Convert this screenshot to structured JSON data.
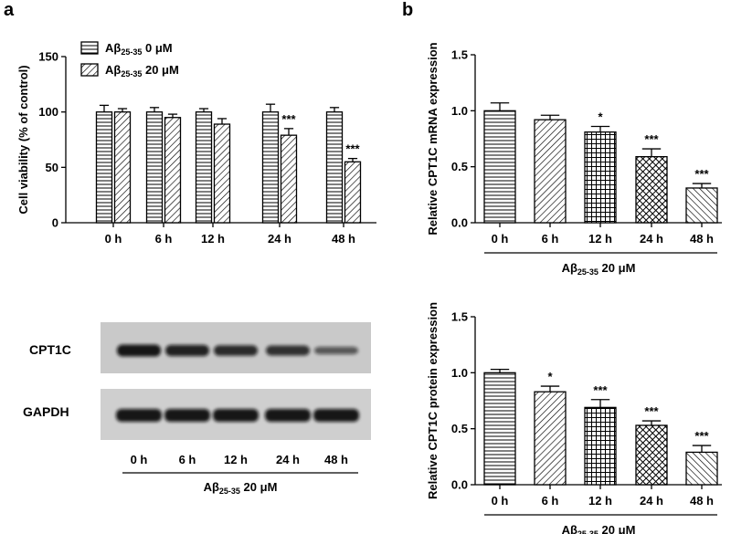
{
  "panels": {
    "a_label": "a",
    "b_label": "b"
  },
  "sub": "25-35",
  "western_blot": {
    "rows": [
      "CPT1C",
      "GAPDH"
    ],
    "lanes": [
      "0 h",
      "6 h",
      "12 h",
      "24 h",
      "48 h"
    ],
    "group_prefix": "Aβ",
    "group_suffix": " 20 μM",
    "cpt1c_band_intensity": [
      1.0,
      0.9,
      0.82,
      0.76,
      0.42
    ],
    "gapdh_band_intensity": [
      1.0,
      1.0,
      1.0,
      1.0,
      1.0
    ]
  },
  "chart_data": [
    {
      "type": "bar",
      "panel": "a",
      "ylabel": "Cell viability (% of control)",
      "ylim": [
        0,
        150
      ],
      "yticks": [
        0,
        50,
        100,
        150
      ],
      "categories": [
        "0 h",
        "6 h",
        "12 h",
        "24 h",
        "48 h"
      ],
      "legend": "top-left",
      "series": [
        {
          "name_prefix": "Aβ",
          "name_suffix": " 0 μM",
          "pattern": "hstripe",
          "values": [
            100,
            100,
            100,
            100,
            100
          ],
          "errors": [
            6,
            4,
            3,
            7,
            4
          ]
        },
        {
          "name_prefix": "Aβ",
          "name_suffix": " 20 μM",
          "pattern": "diag",
          "values": [
            100,
            95,
            89,
            79,
            55
          ],
          "errors": [
            3,
            3,
            5,
            6,
            3
          ]
        }
      ],
      "significance": [
        "",
        "",
        "",
        "***",
        "***"
      ]
    },
    {
      "type": "bar",
      "panel": "b-top",
      "ylabel": "Relative CPT1C mRNA expression",
      "ylim": [
        0,
        1.5
      ],
      "yticks": [
        0.0,
        0.5,
        1.0,
        1.5
      ],
      "categories": [
        "0 h",
        "6 h",
        "12 h",
        "24 h",
        "48 h"
      ],
      "xgroup_prefix": "Aβ",
      "xgroup_suffix": " 20 μM",
      "values": [
        1.0,
        0.92,
        0.81,
        0.59,
        0.31
      ],
      "errors": [
        0.07,
        0.04,
        0.05,
        0.07,
        0.04
      ],
      "patterns": [
        "hstripe",
        "diag",
        "grid",
        "crosshatch",
        "diag-rev"
      ],
      "significance": [
        "",
        "",
        "*",
        "***",
        "***"
      ]
    },
    {
      "type": "bar",
      "panel": "b-bottom",
      "ylabel": "Relative CPT1C protein expression",
      "ylim": [
        0,
        1.5
      ],
      "yticks": [
        0.0,
        0.5,
        1.0,
        1.5
      ],
      "categories": [
        "0 h",
        "6 h",
        "12 h",
        "24 h",
        "48 h"
      ],
      "xgroup_prefix": "Aβ",
      "xgroup_suffix": " 20 μM",
      "values": [
        1.0,
        0.83,
        0.69,
        0.53,
        0.29
      ],
      "errors": [
        0.03,
        0.05,
        0.07,
        0.04,
        0.06
      ],
      "patterns": [
        "hstripe",
        "diag",
        "grid",
        "crosshatch",
        "diag-rev"
      ],
      "significance": [
        "",
        "*",
        "***",
        "***",
        "***"
      ]
    }
  ]
}
